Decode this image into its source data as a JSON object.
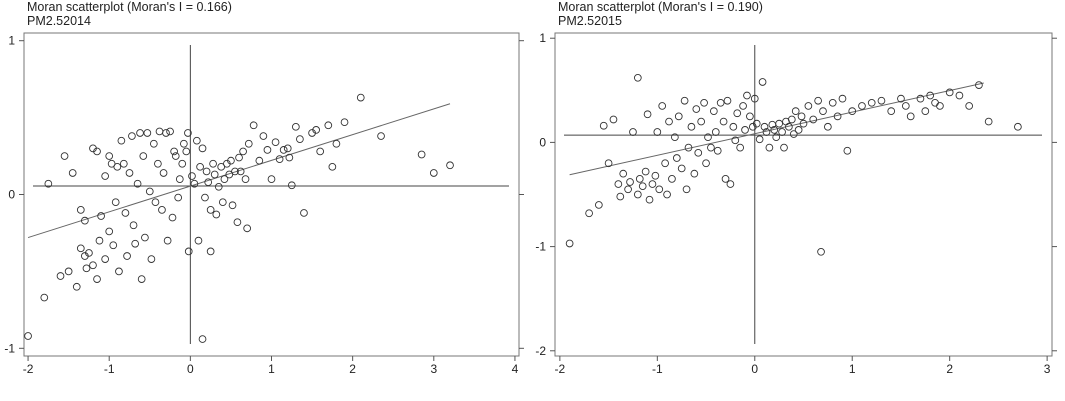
{
  "chart_data": [
    {
      "type": "scatter",
      "title": "Moran scatterplot (Moran's I = 0.166)",
      "subtitle": "PM2.52014",
      "xlim": [
        -2.05,
        4.05
      ],
      "ylim": [
        -1.05,
        1.05
      ],
      "xticks": [
        -2,
        -1,
        0,
        1,
        2,
        3,
        4
      ],
      "yticks": [
        -1,
        0,
        1
      ],
      "fit_line": {
        "x": [
          -2.0,
          3.2
        ],
        "y": [
          -0.28,
          0.59
        ]
      },
      "hline_y": 0.055,
      "vline_x": 0.0,
      "points": [
        [
          -2.0,
          -0.92
        ],
        [
          -1.8,
          -0.67
        ],
        [
          -1.75,
          0.07
        ],
        [
          -1.6,
          -0.53
        ],
        [
          -1.55,
          0.25
        ],
        [
          -1.5,
          -0.5
        ],
        [
          -1.45,
          0.14
        ],
        [
          -1.4,
          -0.6
        ],
        [
          -1.35,
          -0.35
        ],
        [
          -1.35,
          -0.1
        ],
        [
          -1.3,
          -0.17
        ],
        [
          -1.3,
          -0.4
        ],
        [
          -1.28,
          -0.48
        ],
        [
          -1.25,
          -0.38
        ],
        [
          -1.2,
          -0.46
        ],
        [
          -1.2,
          0.3
        ],
        [
          -1.15,
          0.28
        ],
        [
          -1.15,
          -0.55
        ],
        [
          -1.12,
          -0.3
        ],
        [
          -1.1,
          -0.14
        ],
        [
          -1.05,
          0.12
        ],
        [
          -1.05,
          -0.42
        ],
        [
          -1.0,
          -0.24
        ],
        [
          -1.0,
          0.25
        ],
        [
          -0.97,
          0.2
        ],
        [
          -0.95,
          -0.33
        ],
        [
          -0.92,
          -0.05
        ],
        [
          -0.9,
          0.18
        ],
        [
          -0.88,
          -0.5
        ],
        [
          -0.85,
          0.35
        ],
        [
          -0.82,
          0.2
        ],
        [
          -0.8,
          -0.12
        ],
        [
          -0.78,
          -0.4
        ],
        [
          -0.75,
          0.14
        ],
        [
          -0.72,
          0.38
        ],
        [
          -0.7,
          -0.2
        ],
        [
          -0.68,
          -0.32
        ],
        [
          -0.65,
          0.07
        ],
        [
          -0.62,
          0.4
        ],
        [
          -0.6,
          -0.55
        ],
        [
          -0.58,
          0.25
        ],
        [
          -0.56,
          -0.28
        ],
        [
          -0.53,
          0.4
        ],
        [
          -0.5,
          0.02
        ],
        [
          -0.48,
          -0.42
        ],
        [
          -0.45,
          0.33
        ],
        [
          -0.43,
          -0.05
        ],
        [
          -0.4,
          0.2
        ],
        [
          -0.38,
          0.41
        ],
        [
          -0.35,
          -0.1
        ],
        [
          -0.33,
          0.14
        ],
        [
          -0.3,
          0.4
        ],
        [
          -0.28,
          -0.3
        ],
        [
          -0.25,
          0.41
        ],
        [
          -0.22,
          -0.15
        ],
        [
          -0.2,
          0.28
        ],
        [
          -0.18,
          0.25
        ],
        [
          -0.15,
          -0.02
        ],
        [
          -0.13,
          0.1
        ],
        [
          -0.1,
          0.2
        ],
        [
          -0.08,
          0.33
        ],
        [
          -0.05,
          0.28
        ],
        [
          -0.03,
          0.4
        ],
        [
          -0.02,
          -0.37
        ],
        [
          0.02,
          0.12
        ],
        [
          0.05,
          0.07
        ],
        [
          0.08,
          0.35
        ],
        [
          0.1,
          -0.3
        ],
        [
          0.12,
          0.18
        ],
        [
          0.15,
          -0.94
        ],
        [
          0.15,
          0.3
        ],
        [
          0.18,
          -0.02
        ],
        [
          0.2,
          0.15
        ],
        [
          0.22,
          0.08
        ],
        [
          0.25,
          -0.1
        ],
        [
          0.25,
          -0.37
        ],
        [
          0.28,
          0.2
        ],
        [
          0.3,
          0.13
        ],
        [
          0.32,
          -0.13
        ],
        [
          0.35,
          0.05
        ],
        [
          0.38,
          0.18
        ],
        [
          0.4,
          -0.05
        ],
        [
          0.42,
          0.1
        ],
        [
          0.45,
          0.2
        ],
        [
          0.48,
          0.13
        ],
        [
          0.5,
          0.22
        ],
        [
          0.52,
          -0.07
        ],
        [
          0.55,
          0.15
        ],
        [
          0.58,
          -0.18
        ],
        [
          0.6,
          0.24
        ],
        [
          0.62,
          0.15
        ],
        [
          0.65,
          0.28
        ],
        [
          0.68,
          0.1
        ],
        [
          0.7,
          -0.22
        ],
        [
          0.72,
          0.33
        ],
        [
          0.78,
          0.45
        ],
        [
          0.85,
          0.22
        ],
        [
          0.9,
          0.38
        ],
        [
          0.95,
          0.29
        ],
        [
          1.0,
          0.1
        ],
        [
          1.05,
          0.34
        ],
        [
          1.1,
          0.23
        ],
        [
          1.15,
          0.29
        ],
        [
          1.2,
          0.3
        ],
        [
          1.22,
          0.24
        ],
        [
          1.25,
          0.06
        ],
        [
          1.3,
          0.44
        ],
        [
          1.35,
          0.36
        ],
        [
          1.4,
          -0.12
        ],
        [
          1.5,
          0.4
        ],
        [
          1.55,
          0.42
        ],
        [
          1.6,
          0.28
        ],
        [
          1.7,
          0.45
        ],
        [
          1.75,
          0.18
        ],
        [
          1.8,
          0.33
        ],
        [
          1.9,
          0.47
        ],
        [
          2.1,
          0.63
        ],
        [
          2.35,
          0.38
        ],
        [
          2.85,
          0.26
        ],
        [
          3.0,
          0.14
        ],
        [
          3.2,
          0.19
        ]
      ]
    },
    {
      "type": "scatter",
      "title": "Moran scatterplot (Moran's I = 0.190)",
      "subtitle": "PM2.52015",
      "xlim": [
        -2.05,
        3.05
      ],
      "ylim": [
        -2.05,
        1.05
      ],
      "xticks": [
        -2,
        -1,
        0,
        1,
        2,
        3
      ],
      "yticks": [
        -2,
        -1,
        0,
        1
      ],
      "fit_line": {
        "x": [
          -1.9,
          2.35
        ],
        "y": [
          -0.31,
          0.57
        ]
      },
      "hline_y": 0.07,
      "vline_x": 0.0,
      "points": [
        [
          -1.9,
          -0.97
        ],
        [
          -1.7,
          -0.68
        ],
        [
          -1.6,
          -0.6
        ],
        [
          -1.55,
          0.16
        ],
        [
          -1.5,
          -0.2
        ],
        [
          -1.45,
          0.22
        ],
        [
          -1.4,
          -0.4
        ],
        [
          -1.38,
          -0.52
        ],
        [
          -1.35,
          -0.3
        ],
        [
          -1.3,
          -0.45
        ],
        [
          -1.28,
          -0.38
        ],
        [
          -1.25,
          0.1
        ],
        [
          -1.2,
          0.62
        ],
        [
          -1.2,
          -0.5
        ],
        [
          -1.18,
          -0.35
        ],
        [
          -1.15,
          -0.42
        ],
        [
          -1.12,
          -0.28
        ],
        [
          -1.1,
          0.27
        ],
        [
          -1.08,
          -0.55
        ],
        [
          -1.05,
          -0.4
        ],
        [
          -1.02,
          -0.32
        ],
        [
          -1.0,
          0.1
        ],
        [
          -0.98,
          -0.45
        ],
        [
          -0.95,
          0.35
        ],
        [
          -0.92,
          -0.2
        ],
        [
          -0.9,
          -0.5
        ],
        [
          -0.88,
          0.2
        ],
        [
          -0.85,
          -0.35
        ],
        [
          -0.82,
          0.05
        ],
        [
          -0.8,
          -0.15
        ],
        [
          -0.78,
          0.25
        ],
        [
          -0.75,
          -0.25
        ],
        [
          -0.72,
          0.4
        ],
        [
          -0.7,
          -0.45
        ],
        [
          -0.68,
          -0.05
        ],
        [
          -0.65,
          0.15
        ],
        [
          -0.62,
          -0.3
        ],
        [
          -0.6,
          0.32
        ],
        [
          -0.58,
          -0.1
        ],
        [
          -0.55,
          0.2
        ],
        [
          -0.52,
          0.38
        ],
        [
          -0.5,
          -0.2
        ],
        [
          -0.48,
          0.05
        ],
        [
          -0.45,
          -0.05
        ],
        [
          -0.42,
          0.3
        ],
        [
          -0.4,
          0.1
        ],
        [
          -0.38,
          -0.08
        ],
        [
          -0.35,
          0.38
        ],
        [
          -0.32,
          0.2
        ],
        [
          -0.3,
          -0.35
        ],
        [
          -0.28,
          0.4
        ],
        [
          -0.25,
          -0.4
        ],
        [
          -0.22,
          0.15
        ],
        [
          -0.2,
          0.02
        ],
        [
          -0.18,
          0.28
        ],
        [
          -0.15,
          -0.05
        ],
        [
          -0.12,
          0.35
        ],
        [
          -0.1,
          0.12
        ],
        [
          -0.08,
          0.45
        ],
        [
          -0.05,
          0.25
        ],
        [
          -0.02,
          0.15
        ],
        [
          0.0,
          0.42
        ],
        [
          0.02,
          0.18
        ],
        [
          0.05,
          0.03
        ],
        [
          0.08,
          0.58
        ],
        [
          0.1,
          0.15
        ],
        [
          0.12,
          0.1
        ],
        [
          0.15,
          -0.05
        ],
        [
          0.18,
          0.17
        ],
        [
          0.2,
          0.12
        ],
        [
          0.22,
          0.05
        ],
        [
          0.25,
          0.18
        ],
        [
          0.28,
          0.1
        ],
        [
          0.3,
          -0.05
        ],
        [
          0.32,
          0.2
        ],
        [
          0.35,
          0.15
        ],
        [
          0.38,
          0.22
        ],
        [
          0.4,
          0.08
        ],
        [
          0.42,
          0.3
        ],
        [
          0.45,
          0.12
        ],
        [
          0.48,
          0.25
        ],
        [
          0.5,
          0.18
        ],
        [
          0.55,
          0.35
        ],
        [
          0.6,
          0.22
        ],
        [
          0.65,
          0.4
        ],
        [
          0.68,
          -1.05
        ],
        [
          0.7,
          0.3
        ],
        [
          0.75,
          0.15
        ],
        [
          0.8,
          0.38
        ],
        [
          0.85,
          0.25
        ],
        [
          0.9,
          0.42
        ],
        [
          0.95,
          -0.08
        ],
        [
          1.0,
          0.3
        ],
        [
          1.1,
          0.35
        ],
        [
          1.2,
          0.38
        ],
        [
          1.3,
          0.4
        ],
        [
          1.4,
          0.3
        ],
        [
          1.5,
          0.42
        ],
        [
          1.55,
          0.35
        ],
        [
          1.6,
          0.25
        ],
        [
          1.7,
          0.42
        ],
        [
          1.75,
          0.3
        ],
        [
          1.8,
          0.45
        ],
        [
          1.85,
          0.38
        ],
        [
          1.9,
          0.35
        ],
        [
          2.0,
          0.48
        ],
        [
          2.1,
          0.45
        ],
        [
          2.2,
          0.35
        ],
        [
          2.3,
          0.55
        ],
        [
          2.4,
          0.2
        ],
        [
          2.7,
          0.15
        ]
      ]
    }
  ]
}
